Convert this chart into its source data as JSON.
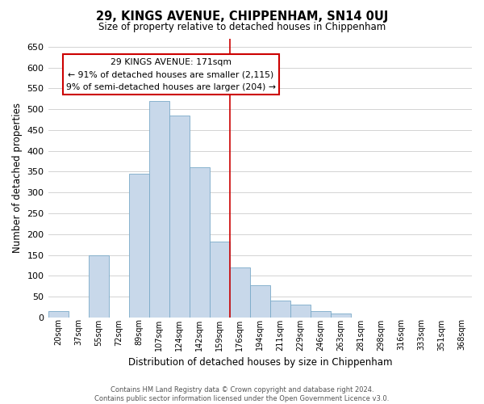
{
  "title": "29, KINGS AVENUE, CHIPPENHAM, SN14 0UJ",
  "subtitle": "Size of property relative to detached houses in Chippenham",
  "xlabel": "Distribution of detached houses by size in Chippenham",
  "ylabel": "Number of detached properties",
  "footer_line1": "Contains HM Land Registry data © Crown copyright and database right 2024.",
  "footer_line2": "Contains public sector information licensed under the Open Government Licence v3.0.",
  "bar_labels": [
    "20sqm",
    "37sqm",
    "55sqm",
    "72sqm",
    "89sqm",
    "107sqm",
    "124sqm",
    "142sqm",
    "159sqm",
    "176sqm",
    "194sqm",
    "211sqm",
    "229sqm",
    "246sqm",
    "263sqm",
    "281sqm",
    "298sqm",
    "316sqm",
    "333sqm",
    "351sqm",
    "368sqm"
  ],
  "bar_values": [
    15,
    0,
    150,
    0,
    345,
    520,
    485,
    360,
    183,
    120,
    77,
    40,
    30,
    15,
    10,
    0,
    0,
    0,
    0,
    0,
    0
  ],
  "bar_color": "#c8d8ea",
  "bar_edge_color": "#7aaac8",
  "ylim": [
    0,
    670
  ],
  "yticks": [
    0,
    50,
    100,
    150,
    200,
    250,
    300,
    350,
    400,
    450,
    500,
    550,
    600,
    650
  ],
  "vline_x": 8.5,
  "vline_color": "#cc0000",
  "annotation_title": "29 KINGS AVENUE: 171sqm",
  "annotation_line1": "← 91% of detached houses are smaller (2,115)",
  "annotation_line2": "9% of semi-detached houses are larger (204) →",
  "background_color": "#ffffff",
  "grid_color": "#cccccc"
}
